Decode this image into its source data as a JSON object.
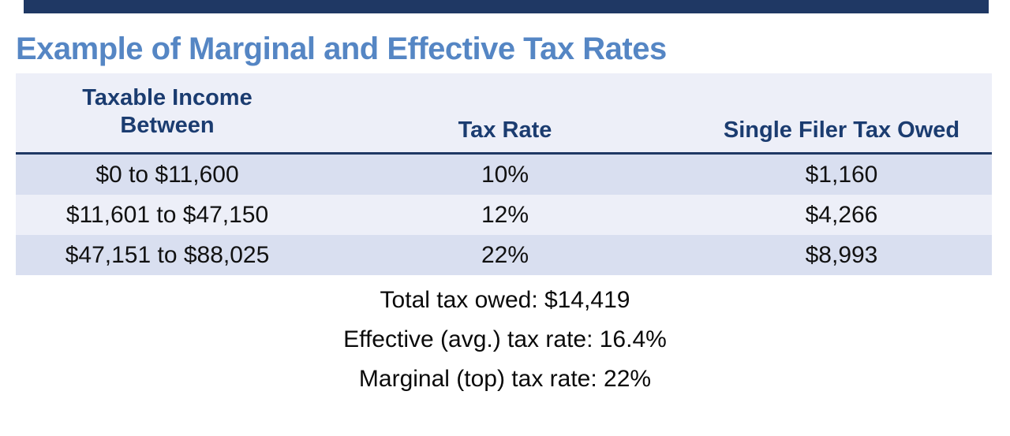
{
  "title": {
    "text": "Example of Marginal and Effective Tax Rates",
    "color": "#5586C4"
  },
  "top_bar": {
    "color": "#1F3864"
  },
  "table": {
    "columns": [
      "Taxable Income\nBetween",
      "Tax Rate",
      "Single Filer Tax Owed"
    ],
    "rows": [
      {
        "income": "$0 to $11,600",
        "rate": "10%",
        "owed": "$1,160"
      },
      {
        "income": "$11,601 to $47,150",
        "rate": "12%",
        "owed": "$4,266"
      },
      {
        "income": "$47,151 to $88,025",
        "rate": "22%",
        "owed": "$8,993"
      }
    ],
    "colors": {
      "header_bg": "#EDEFF8",
      "header_text": "#1B3C70",
      "header_rule": "#1F3864",
      "band_dark": "#D9DFF0",
      "band_light": "#EDEFF8",
      "body_text": "#111111"
    }
  },
  "summary": {
    "lines": [
      "Total tax owed: $14,419",
      "Effective (avg.) tax rate: 16.4%",
      "Marginal (top) tax rate: 22%"
    ]
  }
}
